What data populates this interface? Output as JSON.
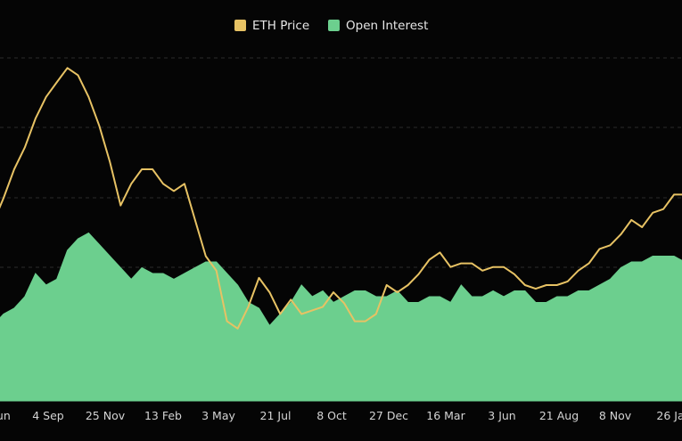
{
  "chart_data": {
    "type": "line",
    "title": "",
    "xlabel": "",
    "ylabel": "",
    "legend": {
      "position": "top-center"
    },
    "grid": {
      "horizontal": true,
      "vertical": false,
      "style": "dashed"
    },
    "x_ticks": [
      "Jun",
      "4 Sep",
      "25 Nov",
      "13 Feb",
      "3 May",
      "21 Jul",
      "8 Oct",
      "27 Dec",
      "16 Mar",
      "3 Jun",
      "21 Aug",
      "8 Nov",
      "26 Ja"
    ],
    "x_tick_index": [
      0,
      1,
      2,
      3,
      4,
      5,
      6,
      7,
      8,
      9,
      10,
      11,
      12
    ],
    "series": [
      {
        "name": "ETH Price",
        "kind": "line",
        "color": "#e7c264",
        "ylim": [
          0,
          4800
        ],
        "values": [
          2450,
          2800,
          3200,
          3500,
          3900,
          4200,
          4400,
          4600,
          4500,
          4200,
          3800,
          3300,
          2700,
          3000,
          3200,
          3200,
          3000,
          2900,
          3000,
          2500,
          2000,
          1800,
          1100,
          1000,
          1300,
          1700,
          1500,
          1200,
          1400,
          1200,
          1250,
          1300,
          1500,
          1350,
          1100,
          1100,
          1200,
          1600,
          1500,
          1600,
          1750,
          1950,
          2050,
          1850,
          1900,
          1900,
          1800,
          1850,
          1850,
          1750,
          1600,
          1550,
          1600,
          1600,
          1650,
          1800,
          1900,
          2100,
          2150,
          2300,
          2500,
          2400,
          2600,
          2650,
          2850,
          2850
        ]
      },
      {
        "name": "Open Interest",
        "kind": "area",
        "color": "#6ccf8e",
        "ylim": [
          0,
          30
        ],
        "values": [
          6.5,
          7.5,
          8.0,
          9.0,
          11.0,
          10.0,
          10.5,
          13.0,
          14.0,
          14.5,
          13.5,
          12.5,
          11.5,
          10.5,
          11.5,
          11.0,
          11.0,
          10.5,
          11.0,
          11.5,
          12.0,
          12.0,
          11.0,
          10.0,
          8.5,
          8.0,
          6.5,
          7.5,
          8.5,
          10.0,
          9.0,
          9.5,
          8.5,
          9.0,
          9.5,
          9.5,
          9.0,
          9.0,
          9.5,
          8.5,
          8.5,
          9.0,
          9.0,
          8.5,
          10.0,
          9.0,
          9.0,
          9.5,
          9.0,
          9.5,
          9.5,
          8.5,
          8.5,
          9.0,
          9.0,
          9.5,
          9.5,
          10.0,
          10.5,
          11.5,
          12.0,
          12.0,
          12.5,
          12.5,
          12.5,
          12.0
        ]
      }
    ]
  }
}
